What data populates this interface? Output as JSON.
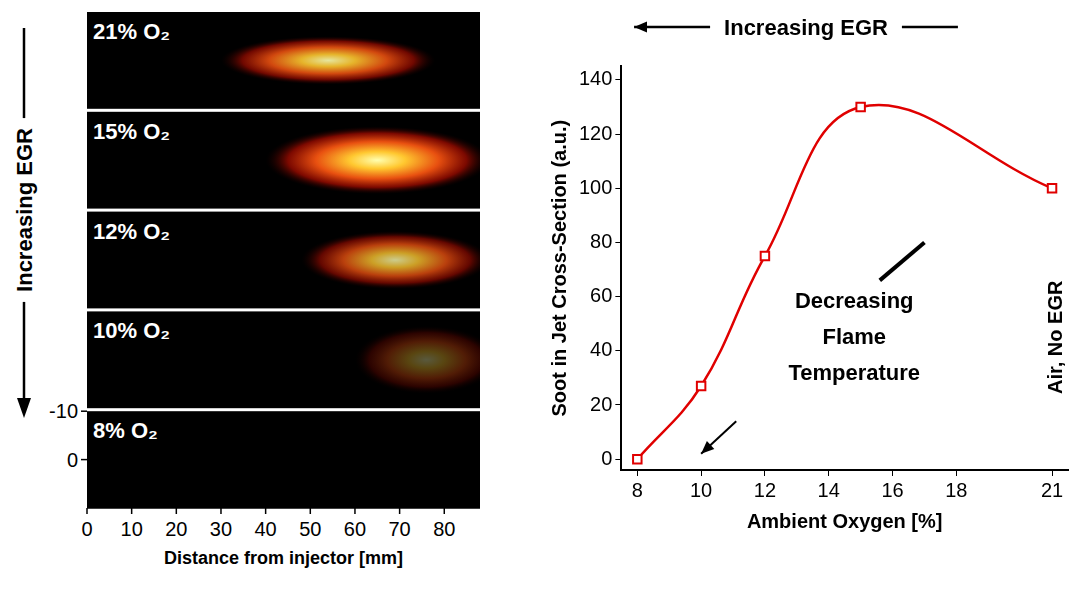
{
  "chart_data": [
    {
      "type": "image_panels",
      "y_label": "Increasing EGR",
      "x_label": "Distance from injector [mm]",
      "xlim": [
        0,
        88
      ],
      "xticks": [
        0,
        10,
        20,
        30,
        40,
        50,
        60,
        70,
        80
      ],
      "ylim": [
        -10,
        10
      ],
      "yticks": [
        -10,
        0
      ],
      "panels": [
        {
          "label": "21% O₂",
          "soot_x": [
            30,
            78
          ],
          "soot_y": [
            -5,
            5
          ],
          "soot_intensity": 0.9
        },
        {
          "label": "15% O₂",
          "soot_x": [
            40,
            90
          ],
          "soot_y": [
            -7,
            7
          ],
          "soot_intensity": 1
        },
        {
          "label": "12% O₂",
          "soot_x": [
            48,
            90
          ],
          "soot_y": [
            -6,
            6
          ],
          "soot_intensity": 0.8
        },
        {
          "label": "10% O₂",
          "soot_x": [
            60,
            92
          ],
          "soot_y": [
            -7,
            7
          ],
          "soot_intensity": 0.35
        },
        {
          "label": "8% O₂",
          "soot_x": null,
          "soot_y": null,
          "soot_intensity": 0
        }
      ]
    },
    {
      "type": "line",
      "title": "Increasing EGR",
      "x_label": "Ambient Oxygen [%]",
      "y_label": "Soot in Jet Cross-Section (a.u.)",
      "x": [
        8,
        10,
        12,
        15,
        21
      ],
      "values": [
        0,
        27,
        75,
        130,
        100
      ],
      "color": "#e00000",
      "marker": "square",
      "xlim": [
        7.5,
        21.5
      ],
      "xticks": [
        8,
        10,
        12,
        14,
        16,
        18,
        21
      ],
      "ylim": [
        -4,
        145
      ],
      "yticks": [
        0,
        20,
        40,
        60,
        80,
        100,
        120,
        140
      ],
      "grid": false,
      "annotations": [
        "Decreasing Flame Temperature",
        "Air, No EGR"
      ]
    }
  ]
}
